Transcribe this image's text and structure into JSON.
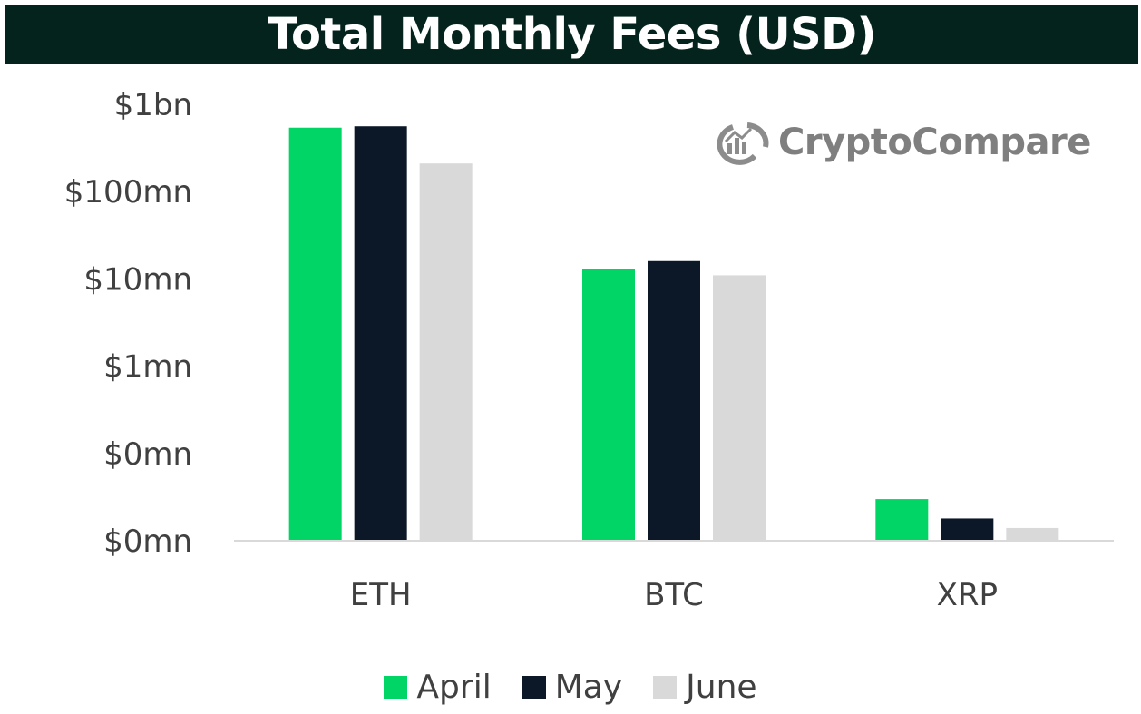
{
  "title": "Total Monthly Fees (USD)",
  "watermark": "CryptoCompare",
  "colors": {
    "title_bg": "#04231c",
    "april": "#00d565",
    "may": "#0c1828",
    "june": "#d9d9d9",
    "axis": "#d9d9d9",
    "text": "#404040"
  },
  "chart_data": {
    "type": "bar",
    "title": "Total Monthly Fees (USD)",
    "y_scale": "log",
    "y_tick_labels": [
      "$1bn",
      "$100mn",
      "$10mn",
      "$1mn",
      "$0mn",
      "$0mn"
    ],
    "y_tick_values": [
      1000000000,
      100000000,
      10000000,
      1000000,
      100000,
      10000
    ],
    "ylim": [
      10000,
      1000000000
    ],
    "categories": [
      "ETH",
      "BTC",
      "XRP"
    ],
    "series": [
      {
        "name": "April",
        "color": "#00d565",
        "values": [
          540000000,
          13000000,
          30000
        ]
      },
      {
        "name": "May",
        "color": "#0c1828",
        "values": [
          560000000,
          16000000,
          18000
        ]
      },
      {
        "name": "June",
        "color": "#d9d9d9",
        "values": [
          210000000,
          11000000,
          14000
        ]
      }
    ],
    "grid": false,
    "legend_position": "bottom"
  }
}
